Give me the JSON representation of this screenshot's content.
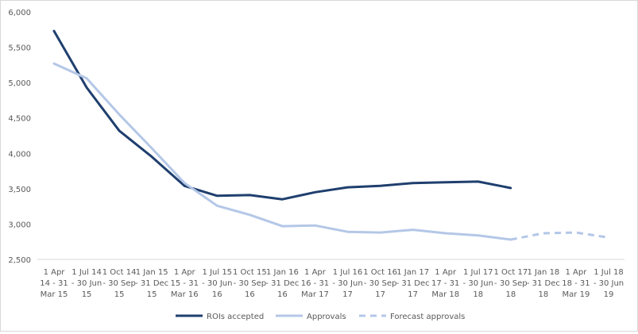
{
  "chart_data": {
    "type": "line",
    "title": "",
    "xlabel": "",
    "ylabel": "",
    "ylim": [
      2500,
      6000
    ],
    "yticks": [
      "2,500",
      "3,000",
      "3,500",
      "4,000",
      "4,500",
      "5,000",
      "5,500",
      "6,000"
    ],
    "ytick_values": [
      2500,
      3000,
      3500,
      4000,
      4500,
      5000,
      5500,
      6000
    ],
    "grid": false,
    "legend_position": "bottom",
    "categories": [
      [
        "1 Apr",
        "14 - 31",
        "Mar 15"
      ],
      [
        "1 Jul 14",
        "- 30 Jun",
        "15"
      ],
      [
        "1 Oct 14",
        "- 30 Sep",
        "15"
      ],
      [
        "1 Jan 15",
        "- 31 Dec",
        "15"
      ],
      [
        "1 Apr",
        "15 - 31",
        "Mar 16"
      ],
      [
        "1 Jul 15",
        "- 30 Jun",
        "16"
      ],
      [
        "1 Oct 15",
        "- 30 Sep",
        "16"
      ],
      [
        "1 Jan 16",
        "- 31 Dec",
        "16"
      ],
      [
        "1 Apr",
        "16 - 31",
        "Mar 17"
      ],
      [
        "1 Jul 16",
        "- 30 Jun",
        "17"
      ],
      [
        "1 Oct 16",
        "- 30 Sep",
        "17"
      ],
      [
        "1 Jan 17",
        "- 31 Dec",
        "17"
      ],
      [
        "1 Apr",
        "17 - 31",
        "Mar 18"
      ],
      [
        "1 Jul 17",
        "- 30 Jun",
        "18"
      ],
      [
        "1 Oct 17",
        "- 30 Sep",
        "18"
      ],
      [
        "1 Jan 18",
        "- 31 Dec",
        "18"
      ],
      [
        "1 Apr",
        "18 - 31",
        "Mar 19"
      ],
      [
        "1 Jul 18",
        "- 30 Jun",
        "19"
      ]
    ],
    "series": [
      {
        "name": "ROIs accepted",
        "color": "#1f3f6e",
        "dashed": false,
        "values": [
          5730,
          4930,
          4320,
          3950,
          3540,
          3400,
          3410,
          3350,
          3450,
          3520,
          3540,
          3580,
          3590,
          3600,
          3510,
          null,
          null,
          null
        ]
      },
      {
        "name": "Approvals",
        "color": "#b4c7e7",
        "dashed": false,
        "values": [
          5270,
          5060,
          4550,
          4070,
          3580,
          3260,
          3130,
          2970,
          2980,
          2890,
          2880,
          2920,
          2870,
          2840,
          2780,
          null,
          null,
          null
        ]
      },
      {
        "name": "Forecast approvals",
        "color": "#b4c7e7",
        "dashed": true,
        "values": [
          null,
          null,
          null,
          null,
          null,
          null,
          null,
          null,
          null,
          null,
          null,
          null,
          null,
          null,
          2780,
          2870,
          2880,
          2810
        ]
      }
    ]
  }
}
